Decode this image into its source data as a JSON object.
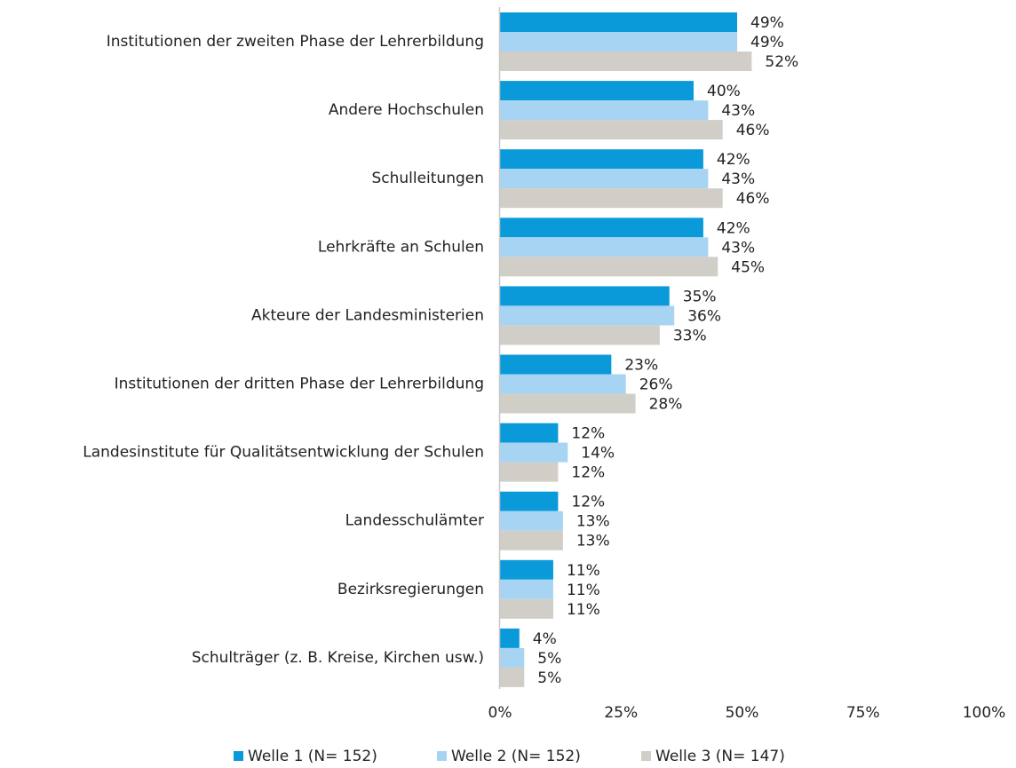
{
  "chart_data": {
    "type": "hbar",
    "categories": [
      "Institutionen der zweiten Phase der Lehrerbildung",
      "Andere Hochschulen",
      "Schulleitungen",
      "Lehrkräfte an Schulen",
      "Akteure der Landesministerien",
      "Institutionen der dritten Phase der Lehrerbildung",
      "Landesinstitute für Qualitätsentwicklung der Schulen",
      "Landesschulämter",
      "Bezirksregierungen",
      "Schulträger (z. B. Kreise, Kirchen usw.)"
    ],
    "series": [
      {
        "name": "Welle 1 (N= 152)",
        "color": "#0a9ad9",
        "values": [
          49,
          40,
          42,
          42,
          35,
          23,
          12,
          12,
          11,
          4
        ],
        "value_labels": [
          "49%",
          "40%",
          "42%",
          "42%",
          "35%",
          "23%",
          "12%",
          "12%",
          "11%",
          "4%"
        ]
      },
      {
        "name": "Welle 2 (N= 152)",
        "color": "#a8d4f4",
        "values": [
          49,
          43,
          43,
          43,
          36,
          26,
          14,
          13,
          11,
          5
        ],
        "value_labels": [
          "49%",
          "43%",
          "43%",
          "43%",
          "36%",
          "26%",
          "14%",
          "13%",
          "11%",
          "5%"
        ]
      },
      {
        "name": "Welle 3 (N= 147)",
        "color": "#d0cec6",
        "values": [
          52,
          46,
          46,
          45,
          33,
          28,
          12,
          13,
          11,
          5
        ],
        "value_labels": [
          "52%",
          "46%",
          "46%",
          "45%",
          "33%",
          "28%",
          "12%",
          "13%",
          "11%",
          "5%"
        ]
      }
    ],
    "xlim": [
      0,
      100
    ],
    "xticks": [
      {
        "value": 0,
        "label": "0%"
      },
      {
        "value": 25,
        "label": "25%"
      },
      {
        "value": 50,
        "label": "50%"
      },
      {
        "value": 75,
        "label": "75%"
      },
      {
        "value": 100,
        "label": "100%"
      }
    ],
    "legend": "bottom"
  }
}
